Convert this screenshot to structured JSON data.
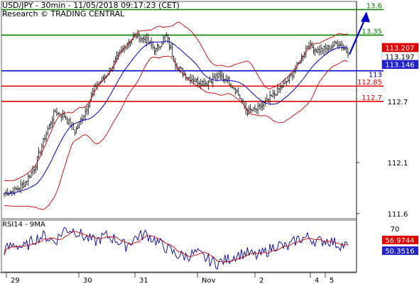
{
  "header": {
    "line1": "USD/JPY - 30min - 11/05/2018 09:17:23 (CET)",
    "line2": "Research © TRADING CENTRAL"
  },
  "colors": {
    "resistance": "#008000",
    "support": "#e00000",
    "pivot": "#0000c0",
    "bollinger": "#cc0000",
    "moving_average": "#0000cc",
    "candles": "#000000",
    "price_label_red_bg": "#e00000",
    "price_label_blue_bg": "#2222cc",
    "rsi_line": "#0000aa",
    "rsi_ma": "#cc0000"
  },
  "chart_data": {
    "type": "candlestick",
    "instrument": "USD/JPY",
    "timeframe": "30min",
    "x_tick_labels": [
      "29",
      "30",
      "31",
      "Nov",
      "2",
      "4",
      "5"
    ],
    "price_axis": {
      "ylim": [
        111.55,
        113.68
      ],
      "tick_labels": [
        "112.7",
        "112.1",
        "111.6"
      ]
    },
    "levels": [
      {
        "label": "13.6",
        "value": 113.6,
        "kind": "resistance"
      },
      {
        "label": "13.35",
        "value": 113.35,
        "kind": "resistance"
      },
      {
        "label": "113",
        "value": 113.0,
        "kind": "pivot"
      },
      {
        "label": "112.85",
        "value": 112.85,
        "kind": "support"
      },
      {
        "label": "112.7",
        "value": 112.7,
        "kind": "support"
      }
    ],
    "price_labels": [
      {
        "label": "113.207",
        "value": 113.207,
        "kind": "red"
      },
      {
        "label": "113.197",
        "value": 113.197,
        "kind": "white"
      },
      {
        "label": "113.146",
        "value": 113.146,
        "kind": "blue"
      }
    ],
    "close_path": [
      111.8,
      111.82,
      111.9,
      112.05,
      112.35,
      112.6,
      112.55,
      112.4,
      112.6,
      112.85,
      112.95,
      113.1,
      113.25,
      113.35,
      113.3,
      113.2,
      113.35,
      113.05,
      112.95,
      112.9,
      112.88,
      112.95,
      112.92,
      112.8,
      112.6,
      112.62,
      112.7,
      112.8,
      112.9,
      113.05,
      113.25,
      113.2,
      113.22,
      113.28,
      113.18
    ],
    "projection": {
      "from": 113.16,
      "to": 113.58,
      "style": "arrow"
    },
    "rsi": {
      "title": "RSI14 - 9MA",
      "tick_labels": [
        "70"
      ],
      "ylim": [
        20,
        80
      ],
      "rsi_value_label": "50.3516",
      "ma_value_label": "56.9744",
      "rsi_value": 50.3516,
      "ma_value": 56.9744,
      "series": [
        45,
        52,
        48,
        58,
        62,
        55,
        70,
        68,
        60,
        55,
        62,
        58,
        50,
        60,
        64,
        56,
        48,
        40,
        38,
        42,
        35,
        30,
        34,
        40,
        42,
        38,
        44,
        52,
        48,
        58,
        60,
        55,
        57,
        52,
        50
      ]
    }
  }
}
